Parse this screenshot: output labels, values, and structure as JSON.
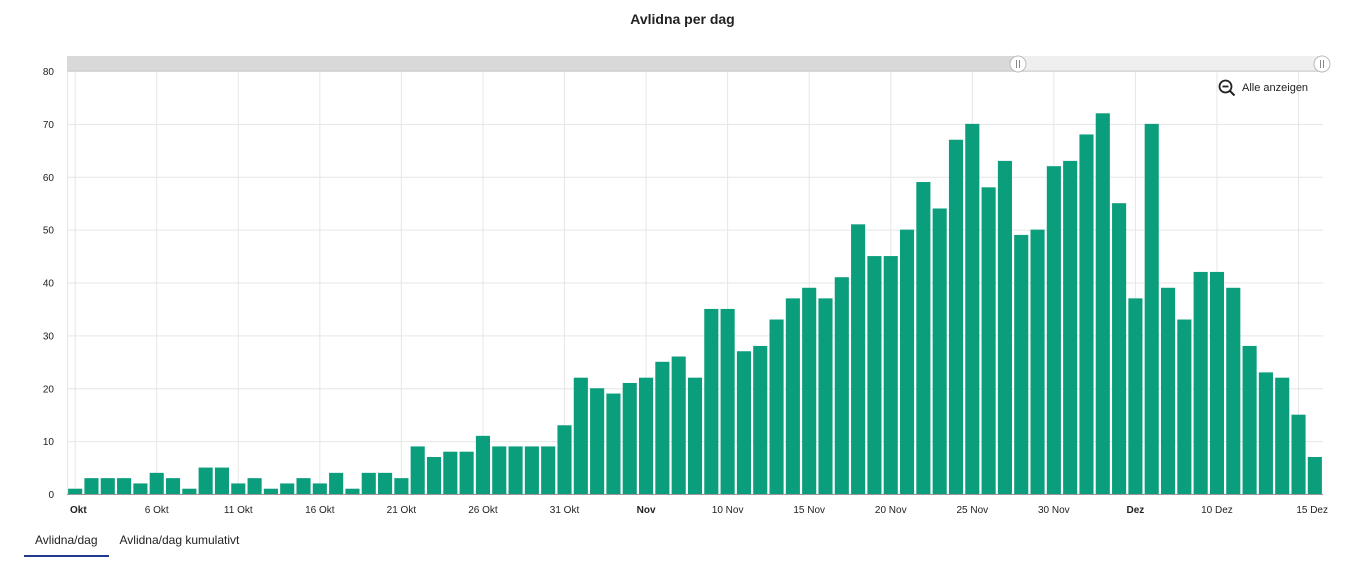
{
  "title": "Avlidna per dag",
  "zoom_reset_label": "Alle anzeigen",
  "tabs": [
    {
      "label": "Avlidna/dag",
      "active": true
    },
    {
      "label": "Avlidna/dag kumulativt",
      "active": false
    }
  ],
  "colors": {
    "bar": "#0b9e7c",
    "grid": "#e6e6e6",
    "active_tab_underline": "#1f3a8a"
  },
  "chart_data": {
    "type": "bar",
    "title": "Avlidna per dag",
    "xlabel": "",
    "ylabel": "",
    "x_start": "2020-10-01",
    "x_end": "2020-12-15",
    "ylim": [
      0,
      80
    ],
    "y_ticks": [
      "0",
      "10",
      "20",
      "30",
      "40",
      "50",
      "60",
      "70",
      "80"
    ],
    "x_ticks": [
      {
        "label": "Okt",
        "bold": true
      },
      {
        "label": "6 Okt",
        "bold": false
      },
      {
        "label": "11 Okt",
        "bold": false
      },
      {
        "label": "16 Okt",
        "bold": false
      },
      {
        "label": "21 Okt",
        "bold": false
      },
      {
        "label": "26 Okt",
        "bold": false
      },
      {
        "label": "31 Okt",
        "bold": false
      },
      {
        "label": "Nov",
        "bold": true
      },
      {
        "label": "10 Nov",
        "bold": false
      },
      {
        "label": "15 Nov",
        "bold": false
      },
      {
        "label": "20 Nov",
        "bold": false
      },
      {
        "label": "25 Nov",
        "bold": false
      },
      {
        "label": "30 Nov",
        "bold": false
      },
      {
        "label": "Dez",
        "bold": true
      },
      {
        "label": "10 Dez",
        "bold": false
      },
      {
        "label": "15 Dez",
        "bold": false
      }
    ],
    "grid": true,
    "series": [
      {
        "values": [
          1,
          3,
          3,
          3,
          2,
          4,
          3,
          1,
          5,
          5,
          2,
          3,
          1,
          2,
          3,
          2,
          4,
          1,
          4,
          4,
          3,
          9,
          7,
          8,
          8,
          11,
          9,
          9,
          9,
          9,
          13,
          22,
          20,
          19,
          21,
          22,
          25,
          26,
          22,
          35,
          35,
          27,
          28,
          33,
          37,
          39,
          37,
          41,
          51,
          45,
          45,
          50,
          59,
          54,
          67,
          70,
          58,
          63,
          49,
          50,
          62,
          63,
          68,
          72,
          55,
          37,
          70,
          39,
          33,
          42,
          42,
          39,
          28,
          23,
          22,
          15,
          7
        ]
      }
    ]
  }
}
